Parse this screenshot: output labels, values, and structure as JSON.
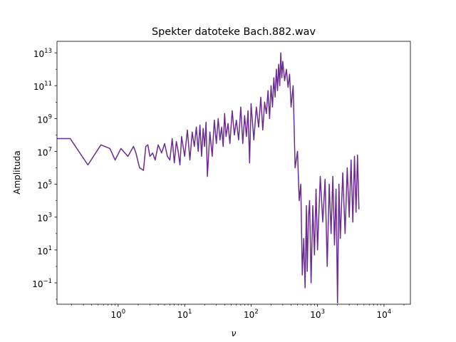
{
  "chart_data": {
    "type": "line",
    "title": "Spekter datoteke Bach.882.wav",
    "xlabel": "ν",
    "ylabel": "Amplituda",
    "xscale": "log",
    "yscale": "log",
    "xlim": [
      0.12,
      25000
    ],
    "ylim": [
      0.005,
      50000000000000
    ],
    "x_ticks": [
      {
        "value": 1,
        "base": "10",
        "exp": "0"
      },
      {
        "value": 10,
        "base": "10",
        "exp": "1"
      },
      {
        "value": 100,
        "base": "10",
        "exp": "2"
      },
      {
        "value": 1000,
        "base": "10",
        "exp": "3"
      },
      {
        "value": 10000,
        "base": "10",
        "exp": "4"
      }
    ],
    "y_ticks": [
      {
        "value": 0.1,
        "base": "10",
        "exp": "−1"
      },
      {
        "value": 10,
        "base": "10",
        "exp": "1"
      },
      {
        "value": 1000,
        "base": "10",
        "exp": "3"
      },
      {
        "value": 100000,
        "base": "10",
        "exp": "5"
      },
      {
        "value": 10000000,
        "base": "10",
        "exp": "7"
      },
      {
        "value": 1000000000,
        "base": "10",
        "exp": "9"
      },
      {
        "value": 100000000000,
        "base": "10",
        "exp": "11"
      },
      {
        "value": 10000000000000,
        "base": "10",
        "exp": "13"
      }
    ],
    "grid": false,
    "color": "#6a2c91",
    "series": [
      {
        "x": [
          0.12,
          0.19,
          0.35,
          0.55,
          0.75,
          0.9,
          1.1,
          1.4,
          1.7,
          1.85,
          2.1,
          2.4,
          2.6,
          2.8,
          3.0,
          3.3,
          3.6,
          4.0,
          4.5,
          5.0,
          5.5,
          6.0,
          6.5,
          7.0,
          7.5,
          8.0,
          8.5,
          9.0,
          10.0,
          11,
          12,
          13,
          14,
          15,
          16,
          17,
          18,
          19,
          20,
          21,
          22,
          24,
          26,
          28,
          30,
          32,
          34,
          36,
          38,
          40,
          42,
          45,
          48,
          52,
          56,
          60,
          65,
          70,
          75,
          80,
          85,
          90,
          95,
          100,
          110,
          120,
          130,
          140,
          150,
          160,
          170,
          180,
          190,
          200,
          210,
          220,
          230,
          240,
          250,
          260,
          270,
          280,
          290,
          300,
          320,
          340,
          360,
          380,
          400,
          430,
          460,
          500,
          530,
          560,
          590,
          620,
          650,
          680,
          700,
          730,
          760,
          800,
          850,
          900,
          950,
          1000,
          1100,
          1200,
          1300,
          1400,
          1500,
          1600,
          1700,
          1800,
          1900,
          2000,
          2100,
          2200,
          2400,
          2600,
          2800,
          3000,
          3200,
          3400,
          3600,
          3800,
          4000,
          4200
        ],
        "y": [
          60000000,
          60000000,
          1500000,
          25000000,
          15000000,
          3000000,
          15000000,
          5000000,
          20000000,
          8000000,
          1000000,
          700000,
          20000000,
          25000000,
          5000000,
          8000000,
          3000000,
          25000000,
          8000000,
          30000000,
          5000000,
          3000000,
          60000000,
          2000000,
          40000000,
          10000000,
          1500000,
          80000000,
          5000000,
          200000000,
          3000000,
          150000000,
          20000000,
          300000000,
          10000000,
          400000000,
          5000000,
          250000000,
          20000000,
          600000000,
          300000,
          150000000,
          5000000,
          800000000,
          30000000,
          1000000000,
          50000000,
          300000000,
          20000000,
          2000000000,
          80000000,
          500000000,
          30000000,
          3000000000,
          100000000,
          800000000,
          50000000,
          5000000000,
          30000000,
          1500000000,
          80000000,
          3000000000,
          2000000,
          8000000000,
          50000000,
          5000000000,
          300000000,
          20000000000,
          200000000,
          10000000000,
          2000000000,
          50000000000,
          1000000000,
          100000000000,
          5000000000,
          300000000000,
          20000000000,
          1000000000000,
          50000000000,
          2000000000000,
          100000000000,
          10000000000000,
          300000000000,
          3000000000000,
          200000000000,
          1000000000000,
          80000000000,
          500000000000,
          5000000000,
          100000000000,
          1000000,
          10000000,
          10000,
          100000,
          0.3,
          50,
          0.05,
          5000,
          0.5,
          1000,
          10000,
          0.1,
          5000,
          5,
          50000,
          10,
          300000,
          500,
          200000,
          1,
          100000,
          100,
          300000,
          20,
          50000,
          0.006,
          100000,
          50,
          500000,
          100,
          1000000,
          1000,
          3000000,
          500,
          5000000,
          2000,
          6000000,
          3000
        ]
      }
    ]
  }
}
